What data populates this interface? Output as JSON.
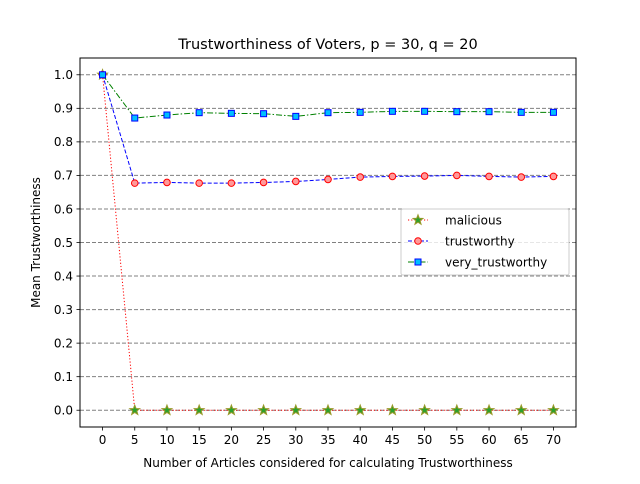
{
  "chart_data": {
    "type": "line",
    "title": "Trustworthiness of Voters, p = 30, q = 20",
    "xlabel": "Number of Articles considered for calculating Trustworthiness",
    "ylabel": "Mean Trustworthiness",
    "x": [
      0,
      5,
      10,
      15,
      20,
      25,
      30,
      35,
      40,
      45,
      50,
      55,
      60,
      65,
      70
    ],
    "xlim": [
      -3.5,
      73.5
    ],
    "ylim": [
      -0.05,
      1.05
    ],
    "xticks": [
      "0",
      "5",
      "10",
      "15",
      "20",
      "25",
      "30",
      "35",
      "40",
      "45",
      "50",
      "55",
      "60",
      "65",
      "70"
    ],
    "yticks": [
      "0.0",
      "0.1",
      "0.2",
      "0.3",
      "0.4",
      "0.5",
      "0.6",
      "0.7",
      "0.8",
      "0.9",
      "1.0"
    ],
    "grid": "horizontal dashed",
    "legend_position": "center-right",
    "series": [
      {
        "name": "malicious",
        "values": [
          1.0,
          0.0,
          0.0,
          0.0,
          0.0,
          0.0,
          0.0,
          0.0,
          0.0,
          0.0,
          0.0,
          0.0,
          0.0,
          0.0,
          0.0
        ],
        "line_color": "#ff0000",
        "line_style": "dotted",
        "marker": "star",
        "marker_face": "#2ca02c",
        "marker_edge": "#9a9a2a"
      },
      {
        "name": "trustworthy",
        "values": [
          1.0,
          0.677,
          0.679,
          0.677,
          0.677,
          0.679,
          0.682,
          0.688,
          0.695,
          0.697,
          0.698,
          0.7,
          0.697,
          0.695,
          0.697
        ],
        "line_color": "#0000ff",
        "line_style": "dashed",
        "marker": "circle",
        "marker_face": "#ff9999",
        "marker_edge": "#ff0000"
      },
      {
        "name": "very_trustworthy",
        "values": [
          1.0,
          0.871,
          0.88,
          0.887,
          0.885,
          0.884,
          0.876,
          0.887,
          0.888,
          0.891,
          0.891,
          0.89,
          0.89,
          0.888,
          0.888
        ],
        "line_color": "#008000",
        "line_style": "dashdot",
        "marker": "square",
        "marker_face": "#00bfff",
        "marker_edge": "#0000ff"
      }
    ]
  }
}
